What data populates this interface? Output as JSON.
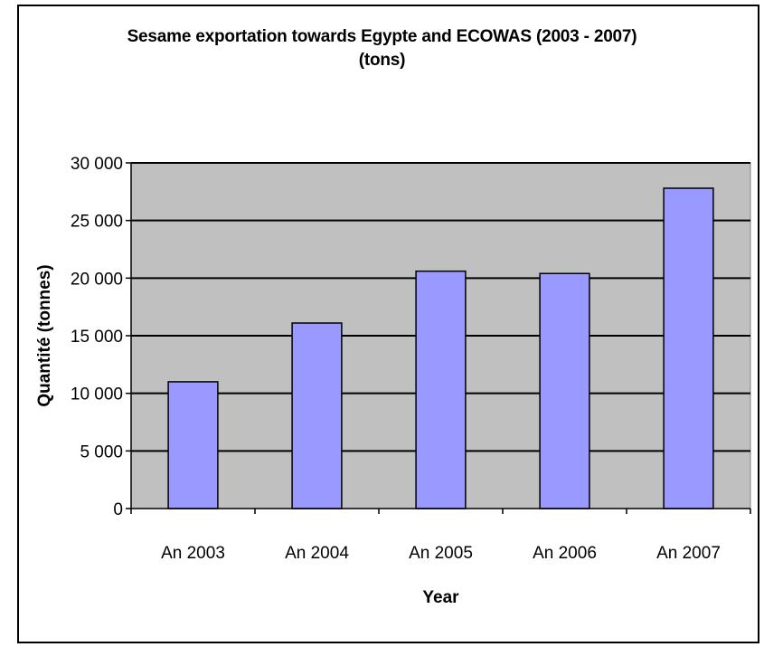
{
  "chart_data": {
    "type": "bar",
    "title": "Sesame exportation towards Egypte and ECOWAS (2003 - 2007)",
    "subtitle": "(tons)",
    "xlabel": "Year",
    "ylabel": "Quantité (tonnes)",
    "categories": [
      "An 2003",
      "An 2004",
      "An 2005",
      "An 2006",
      "An 2007"
    ],
    "values": [
      11000,
      16100,
      20600,
      20400,
      27800
    ],
    "ylim": [
      0,
      30000
    ],
    "yticks": [
      0,
      5000,
      10000,
      15000,
      20000,
      25000,
      30000
    ],
    "ytick_labels": [
      "0",
      "5 000",
      "10 000",
      "15 000",
      "20 000",
      "25 000",
      "30 000"
    ],
    "grid": true,
    "legend": "none",
    "colors": {
      "bar": "#9999ff",
      "plot_background": "#c0c0c0",
      "gridline": "#000000"
    }
  }
}
